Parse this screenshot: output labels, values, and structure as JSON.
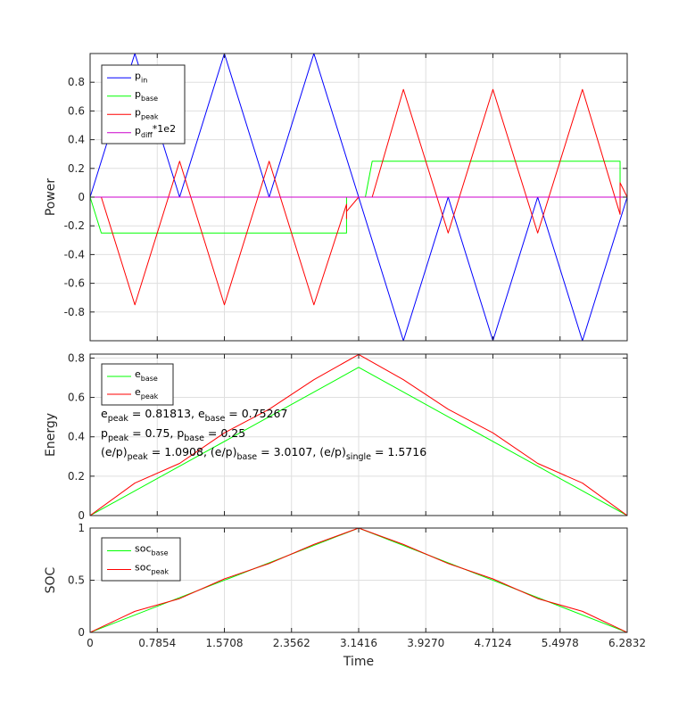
{
  "chart_data": [
    {
      "type": "line",
      "ylabel": "Power",
      "xlim": [
        0,
        6.2832
      ],
      "ylim": [
        -1,
        1
      ],
      "yticks": [
        "-0.8",
        "-0.6",
        "-0.4",
        "-0.2",
        "0",
        "0.2",
        "0.4",
        "0.6",
        "0.8"
      ],
      "ytick_values": [
        -0.8,
        -0.6,
        -0.4,
        -0.2,
        0,
        0.2,
        0.4,
        0.6,
        0.8
      ],
      "grid": true,
      "legend_position": "top-left",
      "series": [
        {
          "name": "p_in",
          "label_main": "p",
          "label_sub": "in",
          "label_sup": "",
          "color": "#0000ff",
          "x": [
            0,
            0.5236,
            1.0472,
            1.5708,
            2.0944,
            2.618,
            3.1416,
            3.6652,
            4.1888,
            4.7124,
            5.236,
            5.7596,
            6.2832
          ],
          "y": [
            0,
            1,
            0,
            1,
            0,
            1,
            0,
            -1,
            0,
            -1,
            0,
            -1,
            0
          ]
        },
        {
          "name": "p_base",
          "label_main": "p",
          "label_sub": "base",
          "label_sup": "",
          "color": "#00ff00",
          "x": [
            0,
            0.1309,
            3.0,
            3.0,
            3.1416,
            3.22,
            3.3,
            6.2,
            6.2,
            6.2832
          ],
          "y": [
            0,
            -0.25,
            -0.25,
            0,
            0,
            0,
            0.25,
            0.25,
            0,
            0
          ]
        },
        {
          "name": "p_peak",
          "label_main": "p",
          "label_sub": "peak",
          "label_sup": "",
          "color": "#ff0000",
          "x": [
            0,
            0.1309,
            0.5236,
            1.0472,
            1.5708,
            2.0944,
            2.618,
            3.0,
            3.0,
            3.0,
            3.1416,
            3.3,
            3.6652,
            4.1888,
            4.7124,
            5.236,
            5.7596,
            6.2,
            6.2,
            6.2832
          ],
          "y": [
            0,
            0,
            -0.75,
            0.25,
            -0.75,
            0.25,
            -0.75,
            -0.05,
            -0.15,
            -0.1,
            0,
            0,
            0.75,
            -0.25,
            0.75,
            -0.25,
            0.75,
            -0.12,
            0.1,
            0
          ]
        },
        {
          "name": "p_diff*1e2",
          "label_main": "p",
          "label_sub": "diff",
          "label_sup": "*1e2",
          "color": "#cc00cc",
          "x": [
            0,
            6.2832
          ],
          "y": [
            0,
            0
          ]
        }
      ]
    },
    {
      "type": "line",
      "ylabel": "Energy",
      "xlim": [
        0,
        6.2832
      ],
      "ylim": [
        0,
        0.82
      ],
      "yticks": [
        "0",
        "0.2",
        "0.4",
        "0.6",
        "0.8"
      ],
      "ytick_values": [
        0,
        0.2,
        0.4,
        0.6,
        0.8
      ],
      "grid": true,
      "legend_position": "top-left",
      "series": [
        {
          "name": "e_base",
          "label_main": "e",
          "label_sub": "base",
          "color": "#00ff00",
          "x": [
            0,
            3.1416,
            6.2832
          ],
          "y": [
            0,
            0.75267,
            0
          ]
        },
        {
          "name": "e_peak",
          "label_main": "e",
          "label_sub": "peak",
          "color": "#ff0000",
          "x": [
            0,
            0.5236,
            1.0472,
            1.5708,
            2.0944,
            2.618,
            3.1416,
            3.6652,
            4.1888,
            4.7124,
            5.236,
            5.7596,
            6.2832
          ],
          "y": [
            0,
            0.165,
            0.265,
            0.42,
            0.54,
            0.69,
            0.81813,
            0.69,
            0.54,
            0.42,
            0.265,
            0.165,
            0
          ]
        }
      ],
      "annotations": [
        [
          {
            "t": "e"
          },
          {
            "t": "peak",
            "sub": true
          },
          {
            "t": " = 0.81813,  e"
          },
          {
            "t": "base",
            "sub": true
          },
          {
            "t": " = 0.75267"
          }
        ],
        [
          {
            "t": "p"
          },
          {
            "t": "peak",
            "sub": true
          },
          {
            "t": " = 0.75,  p"
          },
          {
            "t": "base",
            "sub": true
          },
          {
            "t": " = 0.25"
          }
        ],
        [
          {
            "t": "(e/p)"
          },
          {
            "t": "peak",
            "sub": true
          },
          {
            "t": " = 1.0908,  (e/p)"
          },
          {
            "t": "base",
            "sub": true
          },
          {
            "t": " = 3.0107,  (e/p)"
          },
          {
            "t": "single",
            "sub": true
          },
          {
            "t": " = 1.5716"
          }
        ]
      ]
    },
    {
      "type": "line",
      "ylabel": "SOC",
      "xlabel": "Time",
      "xlim": [
        0,
        6.2832
      ],
      "ylim": [
        0,
        1
      ],
      "yticks": [
        "0",
        "0.5",
        "1"
      ],
      "ytick_values": [
        0,
        0.5,
        1
      ],
      "xticks": [
        "0",
        "0.7854",
        "1.5708",
        "2.3562",
        "3.1416",
        "3.9270",
        "4.7124",
        "5.4978",
        "6.2832"
      ],
      "xtick_values": [
        0,
        0.7854,
        1.5708,
        2.3562,
        3.1416,
        3.927,
        4.7124,
        5.4978,
        6.2832
      ],
      "grid": true,
      "legend_position": "top-left",
      "series": [
        {
          "name": "soc_base",
          "label_main": "soc",
          "label_sub": "base",
          "color": "#00ff00",
          "x": [
            0,
            3.1416,
            6.2832
          ],
          "y": [
            0,
            1,
            0
          ]
        },
        {
          "name": "soc_peak",
          "label_main": "soc",
          "label_sub": "peak",
          "color": "#ff0000",
          "x": [
            0,
            0.5236,
            1.0472,
            1.5708,
            2.0944,
            2.618,
            3.1416,
            3.6652,
            4.1888,
            4.7124,
            5.236,
            5.7596,
            6.2832
          ],
          "y": [
            0,
            0.202,
            0.324,
            0.513,
            0.66,
            0.843,
            1,
            0.843,
            0.66,
            0.513,
            0.324,
            0.202,
            0
          ]
        }
      ]
    }
  ]
}
